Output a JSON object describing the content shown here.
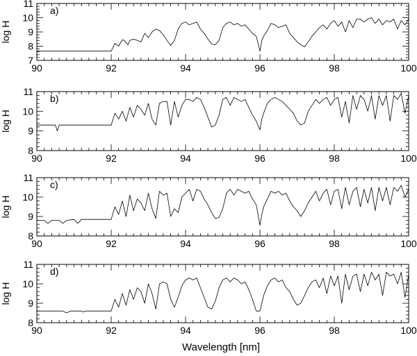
{
  "figure": {
    "xlabel": "Wavelength [nm]"
  },
  "chart_data": [
    {
      "type": "line",
      "panel_label": "a)",
      "ylabel": "log H",
      "xlim": [
        90,
        100
      ],
      "ylim": [
        7,
        11
      ],
      "xticks": [
        "90",
        "92",
        "94",
        "96",
        "98",
        "100"
      ],
      "yticks": [
        "7",
        "8",
        "9",
        "10",
        "11"
      ],
      "series": [
        {
          "x": [
            90,
            92.0,
            92.1,
            92.2,
            92.3,
            92.35,
            92.45,
            92.5,
            92.6,
            92.7,
            92.8,
            92.9,
            93.0,
            93.1,
            93.2,
            93.3,
            93.4,
            93.5,
            93.6,
            93.7,
            93.8,
            93.9,
            94.0,
            94.1,
            94.2,
            94.3,
            94.4,
            94.5,
            94.6,
            94.7,
            94.8,
            94.9,
            95.0,
            95.1,
            95.2,
            95.3,
            95.4,
            95.5,
            95.6,
            95.7,
            95.8,
            95.9,
            96.0,
            96.05,
            96.1,
            96.2,
            96.3,
            96.4,
            96.5,
            96.6,
            96.7,
            96.8,
            96.9,
            97.0,
            97.1,
            97.2,
            97.3,
            97.4,
            97.5,
            97.6,
            97.7,
            97.8,
            97.9,
            98.0,
            98.1,
            98.2,
            98.3,
            98.4,
            98.5,
            98.6,
            98.7,
            98.8,
            98.9,
            99.0,
            99.1,
            99.2,
            99.3,
            99.4,
            99.5,
            99.6,
            99.7,
            99.8,
            99.9,
            100
          ],
          "y": [
            7.65,
            7.65,
            8.2,
            8.0,
            8.45,
            8.4,
            8.1,
            8.4,
            8.5,
            8.4,
            8.3,
            8.9,
            8.6,
            9.0,
            9.2,
            9.1,
            8.8,
            8.4,
            8.05,
            8.4,
            9.2,
            9.6,
            9.7,
            9.5,
            9.6,
            9.7,
            9.2,
            8.9,
            8.5,
            8.15,
            8.1,
            8.4,
            9.3,
            9.6,
            9.7,
            9.5,
            9.6,
            9.4,
            9.5,
            9.2,
            8.9,
            8.7,
            7.65,
            8.4,
            8.7,
            9.1,
            9.6,
            9.5,
            9.3,
            9.4,
            9.5,
            8.9,
            8.6,
            8.3,
            8.1,
            7.95,
            8.3,
            8.7,
            9.0,
            9.3,
            9.5,
            9.2,
            9.6,
            9.8,
            9.4,
            9.7,
            9.0,
            9.8,
            9.3,
            9.9,
            9.9,
            9.7,
            9.9,
            10.0,
            9.6,
            9.9,
            9.5,
            9.8,
            9.7,
            9.9,
            9.2,
            9.8,
            9.5,
            9.9
          ]
        }
      ]
    },
    {
      "type": "line",
      "panel_label": "b)",
      "ylabel": "log H",
      "xlim": [
        90,
        100
      ],
      "ylim": [
        8,
        11
      ],
      "xticks": [
        "90",
        "92",
        "94",
        "96",
        "98",
        "100"
      ],
      "yticks": [
        "8",
        "9",
        "10",
        "11"
      ],
      "series": [
        {
          "x": [
            90,
            90.5,
            90.55,
            90.6,
            91.0,
            91.5,
            92.0,
            92.1,
            92.2,
            92.3,
            92.4,
            92.5,
            92.6,
            92.7,
            92.8,
            92.9,
            93.0,
            93.1,
            93.2,
            93.3,
            93.4,
            93.5,
            93.6,
            93.7,
            93.8,
            93.9,
            94.0,
            94.1,
            94.2,
            94.3,
            94.4,
            94.5,
            94.6,
            94.7,
            94.8,
            94.9,
            95.0,
            95.1,
            95.2,
            95.3,
            95.4,
            95.5,
            95.6,
            95.7,
            95.8,
            95.9,
            96.0,
            96.05,
            96.1,
            96.2,
            96.3,
            96.4,
            96.5,
            96.6,
            96.7,
            96.8,
            96.9,
            97.0,
            97.1,
            97.2,
            97.3,
            97.4,
            97.5,
            97.6,
            97.7,
            97.8,
            97.9,
            98.0,
            98.1,
            98.2,
            98.3,
            98.4,
            98.5,
            98.6,
            98.7,
            98.8,
            98.9,
            99.0,
            99.1,
            99.2,
            99.3,
            99.4,
            99.5,
            99.6,
            99.7,
            99.8,
            99.9,
            100
          ],
          "y": [
            9.3,
            9.3,
            9.0,
            9.3,
            9.3,
            9.3,
            9.3,
            9.9,
            9.6,
            10.0,
            9.5,
            10.2,
            9.7,
            10.3,
            10.1,
            9.8,
            10.4,
            9.6,
            9.3,
            10.4,
            10.5,
            10.5,
            9.3,
            10.5,
            9.7,
            10.3,
            10.6,
            10.6,
            10.5,
            10.7,
            10.6,
            10.2,
            9.7,
            9.2,
            9.3,
            9.8,
            10.6,
            10.7,
            10.3,
            10.7,
            10.6,
            10.5,
            10.6,
            10.2,
            9.8,
            9.5,
            9.05,
            9.6,
            9.9,
            10.4,
            10.6,
            10.7,
            10.6,
            10.5,
            10.3,
            10.1,
            9.9,
            9.5,
            9.3,
            9.4,
            10.0,
            10.3,
            10.6,
            10.4,
            10.6,
            10.7,
            10.3,
            10.6,
            10.7,
            9.7,
            10.5,
            9.4,
            10.8,
            10.1,
            10.8,
            10.6,
            10.0,
            10.8,
            9.6,
            10.8,
            10.3,
            10.8,
            9.5,
            10.8,
            10.6,
            10.9,
            9.9,
            10.8
          ]
        }
      ]
    },
    {
      "type": "line",
      "panel_label": "c)",
      "ylabel": "log H",
      "xlim": [
        90,
        100
      ],
      "ylim": [
        8,
        11
      ],
      "xticks": [
        "90",
        "92",
        "94",
        "96",
        "98",
        "100"
      ],
      "yticks": [
        "8",
        "9",
        "10",
        "11"
      ],
      "series": [
        {
          "x": [
            90,
            90.2,
            90.3,
            90.4,
            90.6,
            90.7,
            90.8,
            91.0,
            91.1,
            91.2,
            91.5,
            92.0,
            92.1,
            92.2,
            92.3,
            92.4,
            92.5,
            92.6,
            92.7,
            92.8,
            92.9,
            93.0,
            93.1,
            93.2,
            93.3,
            93.4,
            93.5,
            93.6,
            93.7,
            93.8,
            93.9,
            94.0,
            94.1,
            94.2,
            94.3,
            94.4,
            94.5,
            94.6,
            94.7,
            94.8,
            94.9,
            95.0,
            95.1,
            95.2,
            95.3,
            95.4,
            95.5,
            95.6,
            95.7,
            95.8,
            95.9,
            96.0,
            96.05,
            96.1,
            96.2,
            96.3,
            96.4,
            96.5,
            96.6,
            96.7,
            96.8,
            96.9,
            97.0,
            97.1,
            97.2,
            97.3,
            97.4,
            97.5,
            97.6,
            97.7,
            97.8,
            97.9,
            98.0,
            98.1,
            98.2,
            98.3,
            98.4,
            98.5,
            98.6,
            98.7,
            98.8,
            98.9,
            99.0,
            99.1,
            99.2,
            99.3,
            99.4,
            99.5,
            99.6,
            99.7,
            99.8,
            99.9,
            100
          ],
          "y": [
            8.8,
            8.8,
            8.65,
            8.8,
            8.8,
            8.65,
            8.8,
            8.85,
            8.65,
            8.85,
            8.85,
            8.85,
            9.5,
            9.1,
            9.8,
            9.0,
            10.1,
            9.3,
            9.9,
            9.7,
            9.3,
            10.2,
            9.4,
            8.9,
            10.3,
            10.1,
            10.2,
            9.0,
            9.4,
            9.2,
            10.0,
            10.2,
            10.4,
            9.8,
            10.4,
            10.3,
            9.9,
            9.6,
            9.2,
            8.9,
            8.95,
            9.4,
            10.2,
            10.4,
            10.1,
            10.4,
            10.3,
            10.2,
            10.3,
            9.9,
            9.6,
            8.55,
            9.1,
            9.5,
            9.9,
            10.3,
            10.2,
            10.3,
            10.1,
            10.2,
            9.8,
            9.5,
            9.3,
            9.0,
            9.3,
            9.7,
            10.0,
            10.3,
            9.8,
            10.2,
            10.4,
            9.6,
            10.3,
            10.4,
            9.4,
            10.5,
            9.6,
            10.3,
            10.5,
            9.5,
            10.4,
            9.7,
            10.5,
            9.3,
            10.5,
            9.8,
            10.5,
            9.6,
            10.5,
            10.3,
            10.6,
            10.0,
            10.4
          ]
        }
      ]
    },
    {
      "type": "line",
      "panel_label": "d)",
      "ylabel": "log H",
      "xlim": [
        90,
        100
      ],
      "ylim": [
        8,
        11
      ],
      "xticks": [
        "90",
        "92",
        "94",
        "96",
        "98",
        "100"
      ],
      "yticks": [
        "8",
        "9",
        "10",
        "11"
      ],
      "series": [
        {
          "x": [
            90,
            90.7,
            90.8,
            90.9,
            91.2,
            91.25,
            91.3,
            92.0,
            92.1,
            92.2,
            92.3,
            92.4,
            92.5,
            92.6,
            92.7,
            92.8,
            92.9,
            93.0,
            93.1,
            93.2,
            93.3,
            93.4,
            93.5,
            93.6,
            93.7,
            93.8,
            93.9,
            94.0,
            94.1,
            94.2,
            94.3,
            94.4,
            94.5,
            94.6,
            94.7,
            94.8,
            94.9,
            95.0,
            95.1,
            95.2,
            95.3,
            95.4,
            95.5,
            95.6,
            95.7,
            95.8,
            95.9,
            96.0,
            96.05,
            96.1,
            96.2,
            96.3,
            96.4,
            96.5,
            96.6,
            96.7,
            96.8,
            96.9,
            97.0,
            97.1,
            97.2,
            97.3,
            97.4,
            97.5,
            97.6,
            97.7,
            97.8,
            97.9,
            98.0,
            98.1,
            98.2,
            98.3,
            98.4,
            98.5,
            98.6,
            98.7,
            98.8,
            98.9,
            99.0,
            99.1,
            99.2,
            99.3,
            99.4,
            99.5,
            99.6,
            99.7,
            99.8,
            99.9,
            100
          ],
          "y": [
            8.6,
            8.6,
            8.5,
            8.6,
            8.6,
            8.55,
            8.6,
            8.6,
            9.2,
            8.8,
            9.5,
            8.9,
            9.7,
            9.2,
            9.8,
            9.6,
            9.0,
            10.0,
            9.5,
            8.7,
            10.0,
            10.1,
            10.0,
            9.2,
            8.8,
            9.3,
            9.9,
            10.2,
            10.3,
            10.2,
            10.3,
            9.8,
            9.3,
            8.8,
            8.7,
            9.1,
            9.8,
            10.2,
            10.3,
            10.1,
            10.3,
            10.2,
            10.0,
            10.1,
            9.7,
            9.2,
            8.6,
            8.6,
            9.0,
            9.4,
            9.9,
            10.2,
            10.3,
            10.1,
            10.2,
            9.8,
            9.6,
            9.2,
            8.9,
            9.0,
            9.4,
            9.8,
            10.1,
            10.2,
            9.8,
            10.3,
            9.5,
            10.4,
            9.9,
            10.4,
            9.0,
            10.5,
            9.7,
            10.4,
            10.5,
            9.6,
            10.5,
            9.9,
            10.6,
            10.2,
            10.5,
            9.4,
            10.6,
            10.4,
            10.5,
            10.0,
            10.6,
            9.3,
            10.5
          ]
        }
      ]
    }
  ]
}
